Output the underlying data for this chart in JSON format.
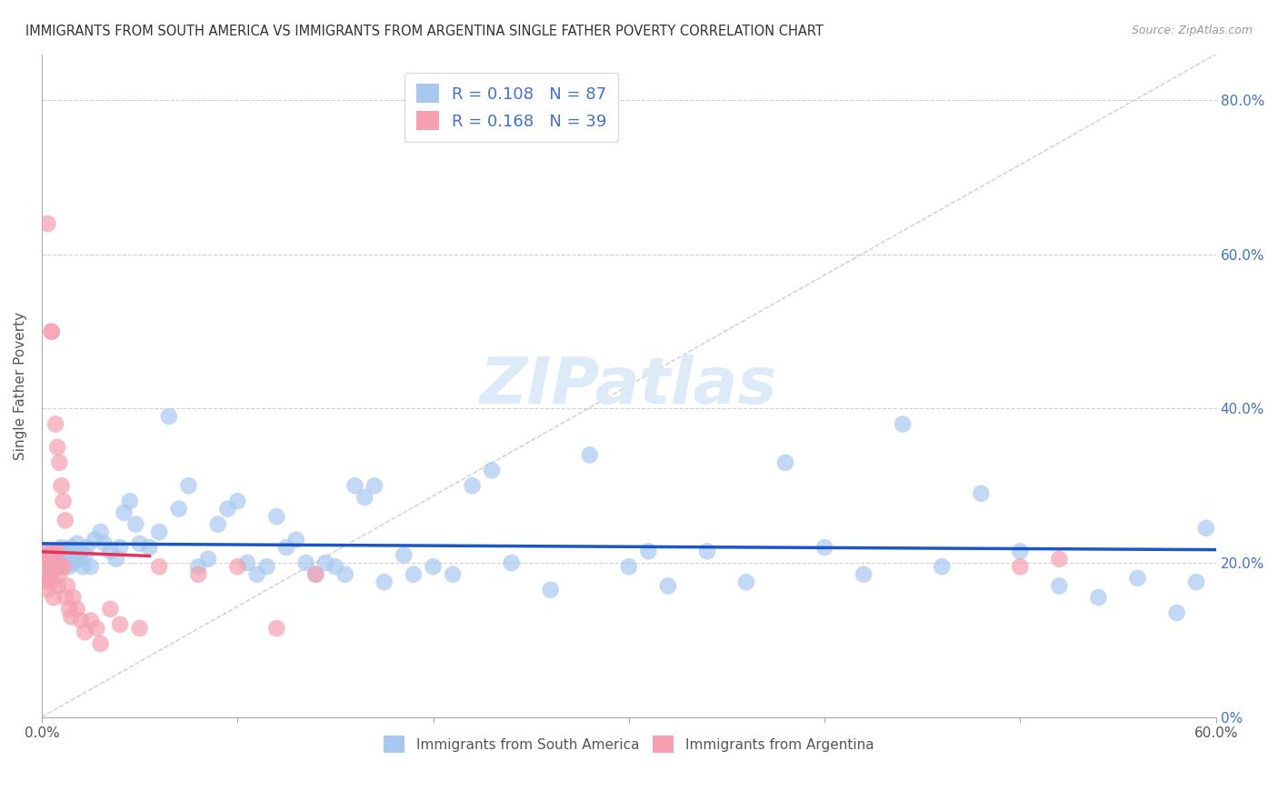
{
  "title": "IMMIGRANTS FROM SOUTH AMERICA VS IMMIGRANTS FROM ARGENTINA SINGLE FATHER POVERTY CORRELATION CHART",
  "source": "Source: ZipAtlas.com",
  "ylabel": "Single Father Poverty",
  "legend_labels": [
    "Immigrants from South America",
    "Immigrants from Argentina"
  ],
  "R_blue": 0.108,
  "N_blue": 87,
  "R_pink": 0.168,
  "N_pink": 39,
  "xlim": [
    0.0,
    0.6
  ],
  "ylim": [
    0.0,
    0.86
  ],
  "yticks": [
    0.0,
    0.2,
    0.4,
    0.6,
    0.8
  ],
  "ytick_labels_right": [
    "0%",
    "20.0%",
    "40.0%",
    "60.0%",
    "80.0%"
  ],
  "color_blue": "#a8c8f0",
  "color_pink": "#f5a0b0",
  "trendline_blue": "#1a56c4",
  "trendline_pink": "#e8305a",
  "background": "#ffffff",
  "blue_x": [
    0.001,
    0.002,
    0.003,
    0.004,
    0.005,
    0.005,
    0.006,
    0.007,
    0.008,
    0.009,
    0.01,
    0.011,
    0.012,
    0.013,
    0.014,
    0.015,
    0.016,
    0.017,
    0.018,
    0.019,
    0.02,
    0.021,
    0.022,
    0.023,
    0.025,
    0.027,
    0.03,
    0.032,
    0.035,
    0.038,
    0.04,
    0.042,
    0.045,
    0.048,
    0.05,
    0.055,
    0.06,
    0.065,
    0.07,
    0.075,
    0.08,
    0.085,
    0.09,
    0.095,
    0.1,
    0.105,
    0.11,
    0.115,
    0.12,
    0.125,
    0.13,
    0.135,
    0.14,
    0.145,
    0.15,
    0.155,
    0.16,
    0.165,
    0.17,
    0.175,
    0.185,
    0.19,
    0.2,
    0.21,
    0.22,
    0.23,
    0.24,
    0.26,
    0.28,
    0.3,
    0.31,
    0.32,
    0.34,
    0.36,
    0.38,
    0.4,
    0.42,
    0.44,
    0.46,
    0.48,
    0.5,
    0.52,
    0.54,
    0.56,
    0.58,
    0.59,
    0.595
  ],
  "blue_y": [
    0.205,
    0.195,
    0.21,
    0.2,
    0.215,
    0.185,
    0.205,
    0.195,
    0.21,
    0.2,
    0.22,
    0.195,
    0.215,
    0.205,
    0.195,
    0.22,
    0.2,
    0.215,
    0.225,
    0.205,
    0.215,
    0.195,
    0.21,
    0.22,
    0.195,
    0.23,
    0.24,
    0.225,
    0.215,
    0.205,
    0.22,
    0.265,
    0.28,
    0.25,
    0.225,
    0.22,
    0.24,
    0.39,
    0.27,
    0.3,
    0.195,
    0.205,
    0.25,
    0.27,
    0.28,
    0.2,
    0.185,
    0.195,
    0.26,
    0.22,
    0.23,
    0.2,
    0.185,
    0.2,
    0.195,
    0.185,
    0.3,
    0.285,
    0.3,
    0.175,
    0.21,
    0.185,
    0.195,
    0.185,
    0.3,
    0.32,
    0.2,
    0.165,
    0.34,
    0.195,
    0.215,
    0.17,
    0.215,
    0.175,
    0.33,
    0.22,
    0.185,
    0.38,
    0.195,
    0.29,
    0.215,
    0.17,
    0.155,
    0.18,
    0.135,
    0.175,
    0.245
  ],
  "pink_x": [
    0.001,
    0.001,
    0.002,
    0.002,
    0.003,
    0.003,
    0.004,
    0.004,
    0.005,
    0.005,
    0.006,
    0.006,
    0.007,
    0.008,
    0.008,
    0.009,
    0.01,
    0.011,
    0.012,
    0.013,
    0.014,
    0.015,
    0.016,
    0.018,
    0.02,
    0.022,
    0.025,
    0.028,
    0.03,
    0.035,
    0.04,
    0.05,
    0.06,
    0.08,
    0.1,
    0.12,
    0.14,
    0.5,
    0.52
  ],
  "pink_y": [
    0.205,
    0.185,
    0.215,
    0.175,
    0.205,
    0.165,
    0.18,
    0.2,
    0.5,
    0.175,
    0.215,
    0.155,
    0.195,
    0.17,
    0.215,
    0.185,
    0.195,
    0.195,
    0.155,
    0.17,
    0.14,
    0.13,
    0.155,
    0.14,
    0.125,
    0.11,
    0.125,
    0.115,
    0.095,
    0.14,
    0.12,
    0.115,
    0.195,
    0.185,
    0.195,
    0.115,
    0.185,
    0.195,
    0.205
  ],
  "pink_outliers_x": [
    0.003,
    0.005,
    0.007,
    0.008,
    0.009,
    0.01,
    0.011,
    0.012
  ],
  "pink_outliers_y": [
    0.64,
    0.5,
    0.38,
    0.35,
    0.33,
    0.3,
    0.28,
    0.255
  ]
}
